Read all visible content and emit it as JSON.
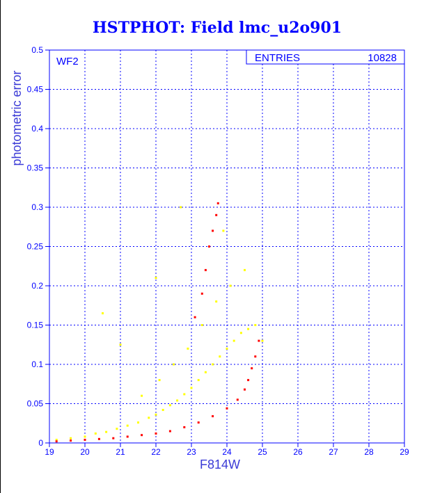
{
  "chart_data": {
    "type": "scatter",
    "title": "HSTPHOT: Field lmc_u2o901",
    "xlabel": "F814W",
    "ylabel": "photometric error",
    "xlim": [
      19,
      29
    ],
    "ylim": [
      0,
      0.5
    ],
    "x_ticks": [
      "19",
      "20",
      "21",
      "22",
      "23",
      "24",
      "25",
      "26",
      "27",
      "28",
      "29"
    ],
    "y_ticks": [
      "0",
      "0.05",
      "0.1",
      "0.15",
      "0.2",
      "0.25",
      "0.3",
      "0.35",
      "0.4",
      "0.45",
      "0.5"
    ],
    "grid": true,
    "chip_label": "WF2",
    "stats_box": {
      "label": "ENTRIES",
      "value": "10828"
    },
    "series": [
      {
        "color": "#ffff00",
        "points": [
          [
            19.2,
            0.004
          ],
          [
            19.6,
            0.006
          ],
          [
            20.0,
            0.008
          ],
          [
            20.3,
            0.012
          ],
          [
            20.6,
            0.014
          ],
          [
            20.9,
            0.018
          ],
          [
            21.2,
            0.022
          ],
          [
            21.5,
            0.026
          ],
          [
            21.8,
            0.032
          ],
          [
            22.0,
            0.036
          ],
          [
            22.2,
            0.042
          ],
          [
            22.4,
            0.048
          ],
          [
            22.6,
            0.054
          ],
          [
            22.8,
            0.062
          ],
          [
            23.0,
            0.07
          ],
          [
            23.2,
            0.08
          ],
          [
            23.4,
            0.09
          ],
          [
            23.6,
            0.1
          ],
          [
            23.8,
            0.11
          ],
          [
            24.0,
            0.12
          ],
          [
            24.2,
            0.13
          ],
          [
            24.4,
            0.14
          ],
          [
            24.6,
            0.145
          ],
          [
            21.6,
            0.06
          ],
          [
            22.1,
            0.08
          ],
          [
            22.5,
            0.1
          ],
          [
            22.9,
            0.12
          ],
          [
            23.3,
            0.15
          ],
          [
            23.7,
            0.18
          ],
          [
            24.1,
            0.2
          ],
          [
            24.5,
            0.22
          ],
          [
            22.7,
            0.3
          ],
          [
            23.9,
            0.27
          ],
          [
            20.5,
            0.165
          ],
          [
            21.0,
            0.125
          ],
          [
            22.0,
            0.21
          ],
          [
            24.8,
            0.15
          ],
          [
            25.0,
            0.13
          ]
        ]
      },
      {
        "color": "#ff0000",
        "points": [
          [
            19.2,
            0.002
          ],
          [
            19.6,
            0.003
          ],
          [
            20.0,
            0.004
          ],
          [
            20.4,
            0.005
          ],
          [
            20.8,
            0.006
          ],
          [
            21.2,
            0.008
          ],
          [
            21.6,
            0.01
          ],
          [
            22.0,
            0.012
          ],
          [
            22.4,
            0.015
          ],
          [
            22.8,
            0.02
          ],
          [
            23.2,
            0.026
          ],
          [
            23.6,
            0.034
          ],
          [
            24.0,
            0.044
          ],
          [
            24.3,
            0.055
          ],
          [
            24.5,
            0.068
          ],
          [
            24.6,
            0.08
          ],
          [
            24.7,
            0.095
          ],
          [
            23.3,
            0.19
          ],
          [
            23.4,
            0.22
          ],
          [
            23.5,
            0.25
          ],
          [
            23.6,
            0.27
          ],
          [
            23.7,
            0.29
          ],
          [
            23.75,
            0.305
          ],
          [
            23.1,
            0.16
          ],
          [
            24.9,
            0.13
          ],
          [
            24.8,
            0.11
          ]
        ]
      }
    ]
  }
}
